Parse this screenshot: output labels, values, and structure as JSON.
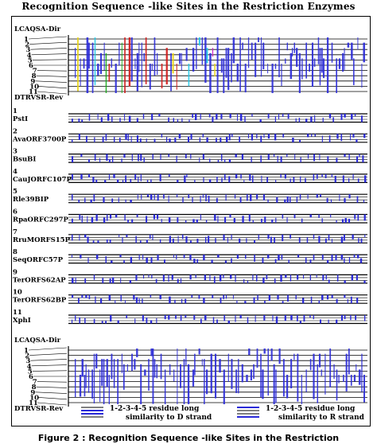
{
  "title": "Recognition Sequence -like Sites in the Restriction  Enzymes",
  "top_block": {
    "header_label": "LCAQSA-Dir",
    "footer_label": "DTRVSR-Rev",
    "row_numbers": [
      "1",
      "2",
      "3",
      "4",
      "5",
      "6",
      "7",
      "8",
      "9",
      "10",
      "11"
    ]
  },
  "enzymes": [
    {
      "index": "1",
      "name": "PstI"
    },
    {
      "index": "2",
      "name": "AvaORF3700P"
    },
    {
      "index": "3",
      "name": "BsuBI"
    },
    {
      "index": "4",
      "name": "CauJORFC107P"
    },
    {
      "index": "5",
      "name": "Rle39BIP"
    },
    {
      "index": "6",
      "name": "RpaORFC297P"
    },
    {
      "index": "7",
      "name": "RruMORFS15P"
    },
    {
      "index": "8",
      "name": "SeqORFC57P"
    },
    {
      "index": "9",
      "name": "TerORFS62AP"
    },
    {
      "index": "10",
      "name": "TerORFS62BP"
    },
    {
      "index": "11",
      "name": "XphI"
    }
  ],
  "bottom_block": {
    "header_label": "LCAQSA-Dir",
    "footer_label": "DTRVSR-Rev",
    "row_numbers": [
      "1",
      "2",
      "3",
      "4",
      "5",
      "6",
      "7",
      "8",
      "9",
      "10",
      "11"
    ]
  },
  "legend": [
    {
      "line1": "1-2-3-4-5 residue long",
      "line2": "similarity to D strand"
    },
    {
      "line1": "1-2-3-4-5 residue long",
      "line2": "similarity to R strand"
    }
  ],
  "caption": "Figure 2 : Recognition Sequence -like Sites in the Restriction",
  "colors": {
    "blue": "#2a2ad8",
    "cyan": "#22c8e8",
    "red": "#d01818",
    "yellow": "#e8d418",
    "green": "#18a818",
    "magenta": "#c818c8"
  }
}
